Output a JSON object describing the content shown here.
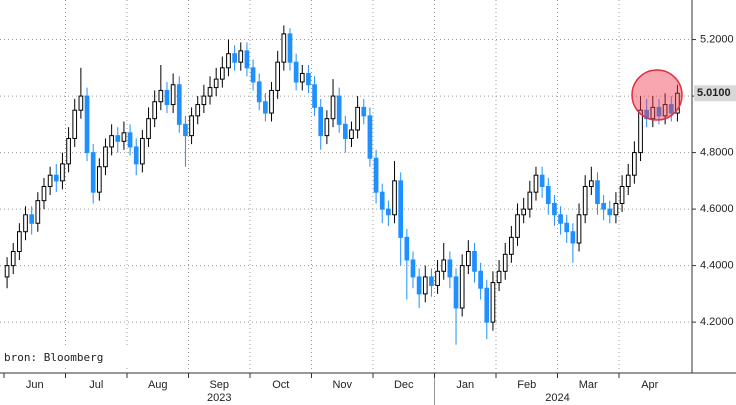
{
  "chart_data": {
    "type": "candlestick",
    "source": "bron: Bloomberg",
    "ylim": [
      4.02,
      5.34
    ],
    "yticks": [
      {
        "value": 4.2,
        "label": "4.2000"
      },
      {
        "value": 4.4,
        "label": "4.4000"
      },
      {
        "value": 4.6,
        "label": "4.6000"
      },
      {
        "value": 4.8,
        "label": "4.8000"
      },
      {
        "value": 5.0,
        "label": "5.0000"
      },
      {
        "value": 5.2,
        "label": "5.2000"
      }
    ],
    "grid": true,
    "up_color": "#000000",
    "down_color": "#1e90ff",
    "last_value": {
      "value": 5.01,
      "label": "5.0100"
    },
    "years": [
      {
        "label": "2023",
        "months": [
          {
            "label": "Jun",
            "candles": [
              [
                4.36,
                4.43,
                4.32,
                4.4
              ],
              [
                4.4,
                4.48,
                4.37,
                4.45
              ],
              [
                4.45,
                4.55,
                4.42,
                4.52
              ],
              [
                4.52,
                4.61,
                4.49,
                4.58
              ],
              [
                4.58,
                4.61,
                4.51,
                4.55
              ],
              [
                4.55,
                4.66,
                4.52,
                4.63
              ],
              [
                4.63,
                4.71,
                4.6,
                4.68
              ],
              [
                4.68,
                4.75,
                4.65,
                4.72
              ],
              [
                4.72,
                4.76,
                4.66,
                4.7
              ],
              [
                4.7,
                4.8,
                4.67,
                4.76
              ]
            ]
          },
          {
            "label": "Jul",
            "candles": [
              [
                4.76,
                4.89,
                4.73,
                4.85
              ],
              [
                4.85,
                4.99,
                4.82,
                4.95
              ],
              [
                4.95,
                5.1,
                4.92,
                5.0
              ],
              [
                5.0,
                5.03,
                4.77,
                4.8
              ],
              [
                4.8,
                4.83,
                4.62,
                4.66
              ],
              [
                4.66,
                4.78,
                4.63,
                4.75
              ],
              [
                4.75,
                4.85,
                4.72,
                4.82
              ],
              [
                4.82,
                4.9,
                4.79,
                4.86
              ],
              [
                4.86,
                4.89,
                4.8,
                4.84
              ],
              [
                4.84,
                4.91,
                4.81,
                4.87
              ]
            ]
          },
          {
            "label": "Aug",
            "candles": [
              [
                4.87,
                4.9,
                4.79,
                4.82
              ],
              [
                4.82,
                4.85,
                4.72,
                4.76
              ],
              [
                4.76,
                4.88,
                4.73,
                4.85
              ],
              [
                4.85,
                4.96,
                4.82,
                4.92
              ],
              [
                4.92,
                5.02,
                4.89,
                4.98
              ],
              [
                4.98,
                5.11,
                4.95,
                5.02
              ],
              [
                5.02,
                5.05,
                4.94,
                4.97
              ],
              [
                4.97,
                5.08,
                4.94,
                5.04
              ],
              [
                5.04,
                5.07,
                4.87,
                4.9
              ],
              [
                4.9,
                4.93,
                4.75,
                4.86
              ]
            ]
          },
          {
            "label": "Sep",
            "candles": [
              [
                4.86,
                4.96,
                4.83,
                4.93
              ],
              [
                4.93,
                5.0,
                4.9,
                4.97
              ],
              [
                4.97,
                5.04,
                4.94,
                5.0
              ],
              [
                5.0,
                5.07,
                4.97,
                5.03
              ],
              [
                5.03,
                5.1,
                5.0,
                5.06
              ],
              [
                5.06,
                5.14,
                5.03,
                5.1
              ],
              [
                5.1,
                5.2,
                5.07,
                5.15
              ],
              [
                5.15,
                5.18,
                5.09,
                5.12
              ],
              [
                5.12,
                5.19,
                5.09,
                5.16
              ],
              [
                5.16,
                5.19,
                5.07,
                5.1
              ]
            ]
          },
          {
            "label": "Oct",
            "candles": [
              [
                5.1,
                5.13,
                5.02,
                5.05
              ],
              [
                5.05,
                5.08,
                4.95,
                4.98
              ],
              [
                4.98,
                5.01,
                4.91,
                4.94
              ],
              [
                4.94,
                5.05,
                4.91,
                5.02
              ],
              [
                5.02,
                5.16,
                4.99,
                5.12
              ],
              [
                5.12,
                5.25,
                5.09,
                5.22
              ],
              [
                5.22,
                5.24,
                5.09,
                5.12
              ],
              [
                5.12,
                5.15,
                5.02,
                5.05
              ],
              [
                5.05,
                5.11,
                5.02,
                5.08
              ],
              [
                5.08,
                5.11,
                5.01,
                5.04
              ]
            ]
          },
          {
            "label": "Nov",
            "candles": [
              [
                5.04,
                5.07,
                4.93,
                4.96
              ],
              [
                4.96,
                4.99,
                4.81,
                4.86
              ],
              [
                4.86,
                4.95,
                4.83,
                4.92
              ],
              [
                4.92,
                5.06,
                4.89,
                5.0
              ],
              [
                5.0,
                5.03,
                4.87,
                4.9
              ],
              [
                4.9,
                4.93,
                4.8,
                4.85
              ],
              [
                4.85,
                4.91,
                4.82,
                4.88
              ],
              [
                4.88,
                5.0,
                4.85,
                4.96
              ],
              [
                4.96,
                4.99,
                4.9,
                4.93
              ],
              [
                4.93,
                4.96,
                4.75,
                4.78
              ]
            ]
          },
          {
            "label": "Dec",
            "candles": [
              [
                4.78,
                4.81,
                4.62,
                4.66
              ],
              [
                4.66,
                4.69,
                4.55,
                4.6
              ],
              [
                4.6,
                4.63,
                4.54,
                4.58
              ],
              [
                4.58,
                4.77,
                4.55,
                4.7
              ],
              [
                4.7,
                4.73,
                4.4,
                4.5
              ],
              [
                4.5,
                4.53,
                4.28,
                4.42
              ],
              [
                4.42,
                4.45,
                4.32,
                4.36
              ],
              [
                4.36,
                4.39,
                4.25,
                4.3
              ],
              [
                4.3,
                4.4,
                4.27,
                4.36
              ],
              [
                4.36,
                4.39,
                4.29,
                4.33
              ]
            ]
          }
        ]
      },
      {
        "label": "2024",
        "months": [
          {
            "label": "Jan",
            "candles": [
              [
                4.33,
                4.42,
                4.3,
                4.38
              ],
              [
                4.38,
                4.48,
                4.35,
                4.42
              ],
              [
                4.42,
                4.45,
                4.32,
                4.36
              ],
              [
                4.36,
                4.39,
                4.12,
                4.25
              ],
              [
                4.25,
                4.44,
                4.22,
                4.4
              ],
              [
                4.4,
                4.49,
                4.37,
                4.45
              ],
              [
                4.45,
                4.48,
                4.34,
                4.38
              ],
              [
                4.38,
                4.41,
                4.28,
                4.32
              ],
              [
                4.32,
                4.35,
                4.14,
                4.2
              ],
              [
                4.2,
                4.38,
                4.17,
                4.34
              ]
            ]
          },
          {
            "label": "Feb",
            "candles": [
              [
                4.34,
                4.42,
                4.31,
                4.38
              ],
              [
                4.38,
                4.48,
                4.35,
                4.44
              ],
              [
                4.44,
                4.54,
                4.41,
                4.5
              ],
              [
                4.5,
                4.62,
                4.47,
                4.58
              ],
              [
                4.58,
                4.64,
                4.55,
                4.6
              ],
              [
                4.6,
                4.7,
                4.57,
                4.66
              ],
              [
                4.66,
                4.75,
                4.63,
                4.72
              ],
              [
                4.72,
                4.75,
                4.64,
                4.68
              ],
              [
                4.68,
                4.71,
                4.58,
                4.62
              ],
              [
                4.62,
                4.65,
                4.54,
                4.58
              ]
            ]
          },
          {
            "label": "Mar",
            "candles": [
              [
                4.58,
                4.61,
                4.51,
                4.55
              ],
              [
                4.55,
                4.58,
                4.48,
                4.52
              ],
              [
                4.52,
                4.55,
                4.41,
                4.48
              ],
              [
                4.48,
                4.62,
                4.45,
                4.58
              ],
              [
                4.58,
                4.72,
                4.55,
                4.68
              ],
              [
                4.68,
                4.75,
                4.65,
                4.7
              ],
              [
                4.7,
                4.73,
                4.58,
                4.62
              ],
              [
                4.62,
                4.65,
                4.56,
                4.6
              ],
              [
                4.6,
                4.63,
                4.55,
                4.58
              ],
              [
                4.58,
                4.66,
                4.55,
                4.62
              ]
            ]
          },
          {
            "label": "Apr",
            "candles": [
              [
                4.62,
                4.72,
                4.59,
                4.68
              ],
              [
                4.68,
                4.76,
                4.65,
                4.72
              ],
              [
                4.72,
                4.84,
                4.69,
                4.8
              ],
              [
                4.8,
                5.0,
                4.77,
                4.95
              ],
              [
                4.95,
                4.99,
                4.89,
                4.92
              ],
              [
                4.92,
                5.0,
                4.89,
                4.96
              ],
              [
                4.96,
                4.99,
                4.9,
                4.93
              ],
              [
                4.93,
                5.01,
                4.9,
                4.97
              ],
              [
                4.97,
                5.0,
                4.91,
                4.94
              ],
              [
                4.94,
                5.04,
                4.91,
                5.01
              ]
            ]
          }
        ]
      }
    ]
  }
}
